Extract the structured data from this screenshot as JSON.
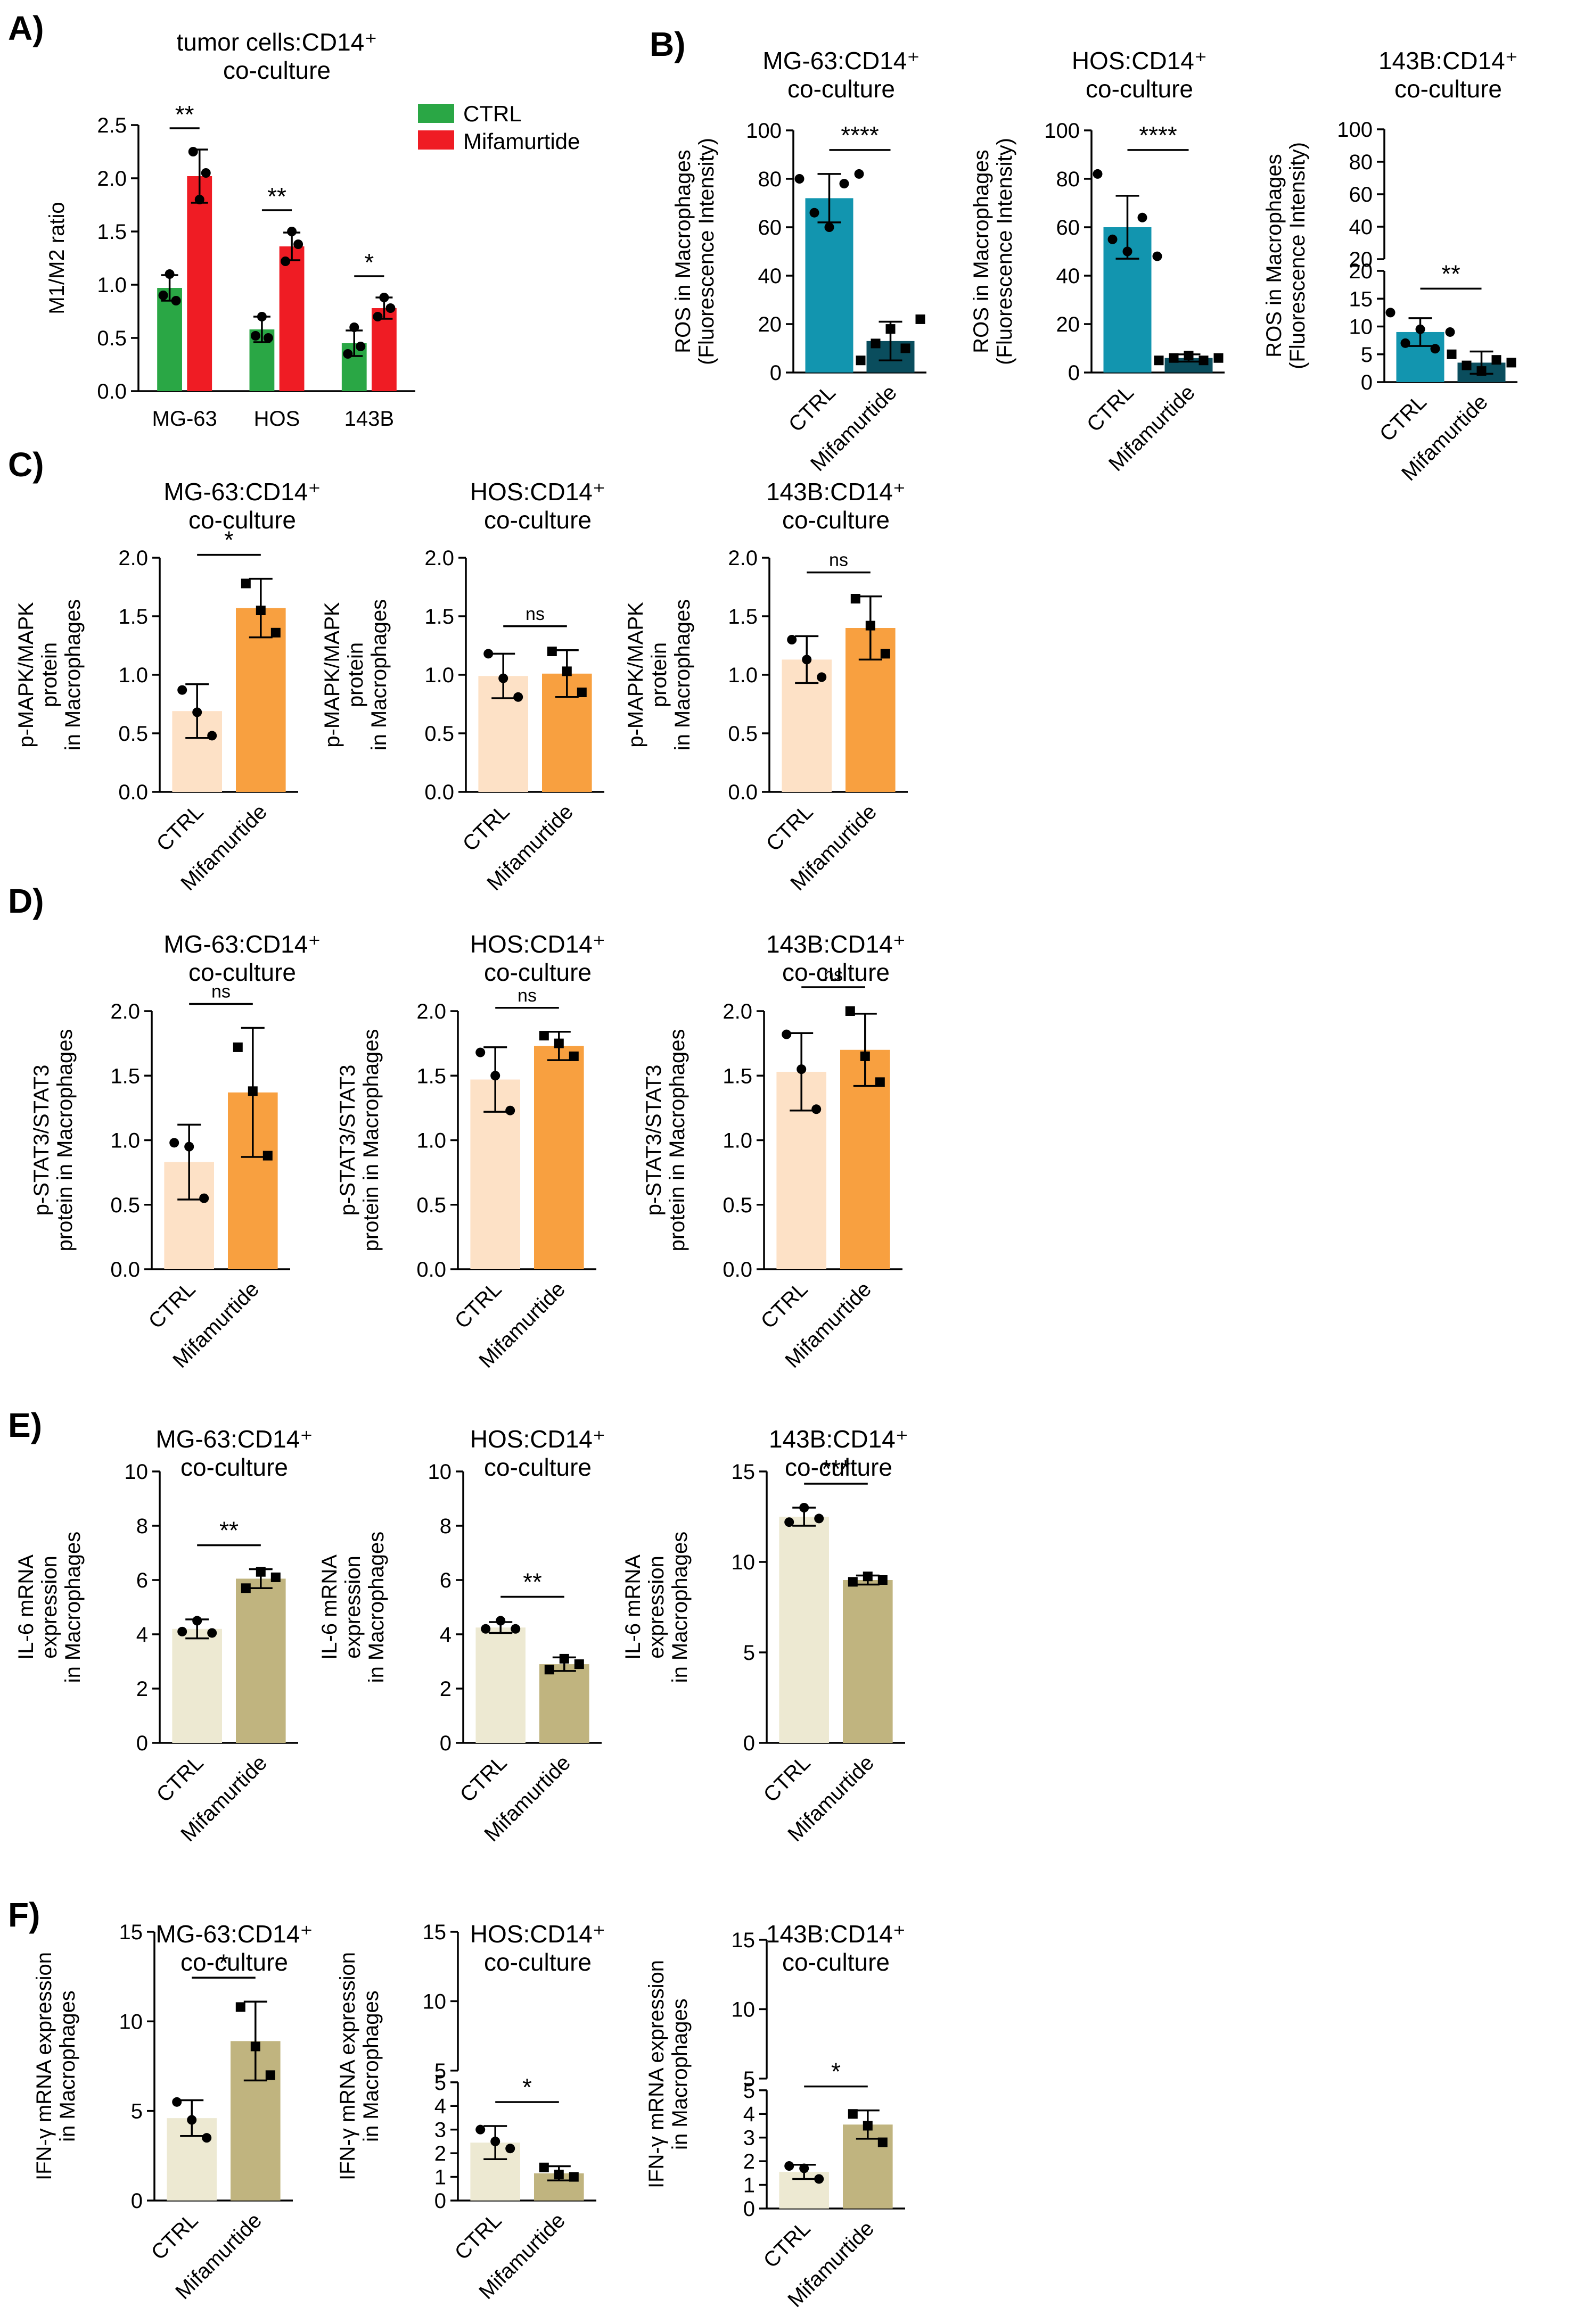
{
  "figure": {
    "panels": [
      {
        "id": "A",
        "letter": "A)",
        "title_lines": [
          "tumor cells:CD14⁺",
          "co-culture"
        ]
      },
      {
        "id": "B",
        "letter": "B)"
      },
      {
        "id": "C",
        "letter": "C)"
      },
      {
        "id": "D",
        "letter": "D)"
      },
      {
        "id": "E",
        "letter": "E)"
      },
      {
        "id": "F",
        "letter": "F)"
      }
    ]
  },
  "colors": {
    "ctrl_green": "#2aa745",
    "mif_red": "#ef1c24",
    "ros_ctrl": "#1295af",
    "ros_mif": "#0a4d5d",
    "mapk_ctrl": "#fde1c6",
    "mapk_mif": "#f8a040",
    "il_ctrl": "#ede9d2",
    "il_mif": "#c0b47f"
  },
  "chart_data": [
    {
      "id": "A",
      "type": "bar",
      "title": "tumor cells:CD14⁺ co-culture",
      "ylabel": "M1/M2 ratio",
      "ylim": [
        0,
        2.5
      ],
      "yticks": [
        "0.0",
        "0.5",
        "1.0",
        "1.5",
        "2.0",
        "2.5"
      ],
      "categories": [
        "MG-63",
        "HOS",
        "143B"
      ],
      "legend": [
        {
          "name": "CTRL"
        },
        {
          "name": "Mifamurtide"
        }
      ],
      "series": [
        {
          "name": "CTRL",
          "values": [
            0.97,
            0.58,
            0.45
          ],
          "errors": [
            0.12,
            0.12,
            0.12
          ],
          "points": [
            [
              0.9,
              1.1,
              0.85
            ],
            [
              0.52,
              0.7,
              0.5
            ],
            [
              0.35,
              0.6,
              0.42
            ]
          ]
        },
        {
          "name": "Mifamurtide",
          "values": [
            2.02,
            1.36,
            0.78
          ],
          "errors": [
            0.25,
            0.13,
            0.1
          ],
          "points": [
            [
              2.25,
              1.8,
              2.05
            ],
            [
              1.22,
              1.5,
              1.38
            ],
            [
              0.7,
              0.88,
              0.78
            ]
          ]
        }
      ],
      "significance": [
        "**",
        "**",
        "*"
      ]
    },
    {
      "id": "B1",
      "type": "bar",
      "title": "MG-63:CD14⁺ co-culture",
      "ylabel": [
        "ROS in Macrophages",
        "(Fluorescence Intensity)"
      ],
      "ylim": [
        0,
        100
      ],
      "yticks": [
        "0",
        "20",
        "40",
        "60",
        "80",
        "100"
      ],
      "categories": [
        "CTRL",
        "Mifamurtide"
      ],
      "values": [
        72,
        13
      ],
      "errors": [
        10,
        8
      ],
      "points": [
        [
          80,
          66,
          60,
          78,
          82
        ],
        [
          5,
          12,
          18,
          10,
          22
        ]
      ],
      "significance": "****"
    },
    {
      "id": "B2",
      "type": "bar",
      "title": "HOS:CD14⁺ co-culture",
      "ylabel": [
        "ROS in Macrophages",
        "(Fluorescence Intensity)"
      ],
      "ylim": [
        0,
        100
      ],
      "yticks": [
        "0",
        "20",
        "40",
        "60",
        "80",
        "100"
      ],
      "categories": [
        "CTRL",
        "Mifamurtide"
      ],
      "values": [
        60,
        6
      ],
      "errors": [
        13,
        1.5
      ],
      "points": [
        [
          82,
          55,
          50,
          64,
          48
        ],
        [
          5,
          6,
          7,
          5,
          6
        ]
      ],
      "significance": "****"
    },
    {
      "id": "B3",
      "type": "bar",
      "title": "143B:CD14⁺ co-culture",
      "ylabel": [
        "ROS in Macrophages",
        "(Fluorescence Intensity)"
      ],
      "ylim": [
        0,
        100
      ],
      "axis_break": [
        20,
        20
      ],
      "yticks": [
        "0",
        "5",
        "10",
        "15",
        "20",
        "20",
        "40",
        "60",
        "80",
        "100"
      ],
      "categories": [
        "CTRL",
        "Mifamurtide"
      ],
      "values": [
        9,
        3.5
      ],
      "errors": [
        2.5,
        2
      ],
      "points": [
        [
          12.5,
          7,
          9.5,
          6,
          9
        ],
        [
          5,
          3,
          2,
          4,
          3.5
        ]
      ],
      "significance": "**"
    },
    {
      "id": "C1",
      "type": "bar",
      "title": "MG-63:CD14⁺ co-culture",
      "ylabel": [
        "p-MAPK/MAPK",
        "protein",
        "in Macrophages"
      ],
      "ylim": [
        0,
        2
      ],
      "yticks": [
        "0.0",
        "0.5",
        "1.0",
        "1.5",
        "2.0"
      ],
      "categories": [
        "CTRL",
        "Mifamurtide"
      ],
      "values": [
        0.69,
        1.57
      ],
      "errors": [
        0.23,
        0.25
      ],
      "points": [
        [
          0.87,
          0.68,
          0.48
        ],
        [
          1.78,
          1.55,
          1.36
        ]
      ],
      "significance": "*"
    },
    {
      "id": "C2",
      "type": "bar",
      "title": "HOS:CD14⁺ co-culture",
      "ylabel": [
        "p-MAPK/MAPK",
        "protein",
        "in Macrophages"
      ],
      "ylim": [
        0,
        2
      ],
      "yticks": [
        "0.0",
        "0.5",
        "1.0",
        "1.5",
        "2.0"
      ],
      "categories": [
        "CTRL",
        "Mifamurtide"
      ],
      "values": [
        0.99,
        1.01
      ],
      "errors": [
        0.19,
        0.2
      ],
      "points": [
        [
          1.18,
          0.97,
          0.81
        ],
        [
          1.2,
          1.03,
          0.85
        ]
      ],
      "significance": "ns"
    },
    {
      "id": "C3",
      "type": "bar",
      "title": "143B:CD14⁺ co-culture",
      "ylabel": [
        "p-MAPK/MAPK",
        "protein",
        "in Macrophages"
      ],
      "ylim": [
        0,
        2
      ],
      "yticks": [
        "0.0",
        "0.5",
        "1.0",
        "1.5",
        "2.0"
      ],
      "categories": [
        "CTRL",
        "Mifamurtide"
      ],
      "values": [
        1.13,
        1.4
      ],
      "errors": [
        0.2,
        0.27
      ],
      "points": [
        [
          1.3,
          1.13,
          0.98
        ],
        [
          1.65,
          1.42,
          1.18
        ]
      ],
      "significance": "ns"
    },
    {
      "id": "D1",
      "type": "bar",
      "title": "MG-63:CD14⁺ co-culture",
      "ylabel": [
        "p-STAT3/STAT3",
        "protein in Macrophages"
      ],
      "ylim": [
        0,
        2
      ],
      "yticks": [
        "0.0",
        "0.5",
        "1.0",
        "1.5",
        "2.0"
      ],
      "categories": [
        "CTRL",
        "Mifamurtide"
      ],
      "values": [
        0.83,
        1.37
      ],
      "errors": [
        0.29,
        0.5
      ],
      "points": [
        [
          0.98,
          0.95,
          0.55
        ],
        [
          1.72,
          1.38,
          0.88
        ]
      ],
      "significance": "ns"
    },
    {
      "id": "D2",
      "type": "bar",
      "title": "HOS:CD14⁺ co-culture",
      "ylabel": [
        "p-STAT3/STAT3",
        "protein in Macrophages"
      ],
      "ylim": [
        0,
        2
      ],
      "yticks": [
        "0.0",
        "0.5",
        "1.0",
        "1.5",
        "2.0"
      ],
      "categories": [
        "CTRL",
        "Mifamurtide"
      ],
      "values": [
        1.47,
        1.73
      ],
      "errors": [
        0.25,
        0.11
      ],
      "points": [
        [
          1.68,
          1.5,
          1.23
        ],
        [
          1.81,
          1.75,
          1.65
        ]
      ],
      "significance": "ns"
    },
    {
      "id": "D3",
      "type": "bar",
      "title": "143B:CD14⁺ co-culture",
      "ylabel": [
        "p-STAT3/STAT3",
        "protein in Macrophages"
      ],
      "ylim": [
        0,
        2
      ],
      "yticks": [
        "0.0",
        "0.5",
        "1.0",
        "1.5",
        "2.0"
      ],
      "categories": [
        "CTRL",
        "Mifamurtide"
      ],
      "values": [
        1.53,
        1.7
      ],
      "errors": [
        0.3,
        0.28
      ],
      "points": [
        [
          1.82,
          1.55,
          1.24
        ],
        [
          2.0,
          1.65,
          1.45
        ]
      ],
      "significance": "ns"
    },
    {
      "id": "E1",
      "type": "bar",
      "title": "MG-63:CD14⁺ co-culture",
      "ylabel": [
        "IL-6 mRNA",
        "expression",
        "in Macrophages"
      ],
      "ylim": [
        0,
        10
      ],
      "yticks": [
        "0",
        "2",
        "4",
        "6",
        "8",
        "10"
      ],
      "categories": [
        "CTRL",
        "Mifamurtide"
      ],
      "values": [
        4.2,
        6.05
      ],
      "errors": [
        0.35,
        0.35
      ],
      "points": [
        [
          4.1,
          4.5,
          4.05
        ],
        [
          5.7,
          6.3,
          6.1
        ]
      ],
      "significance": "**"
    },
    {
      "id": "E2",
      "type": "bar",
      "title": "HOS:CD14⁺ co-culture",
      "ylabel": [
        "IL-6 mRNA",
        "expression",
        "in Macrophages"
      ],
      "ylim": [
        0,
        10
      ],
      "yticks": [
        "0",
        "2",
        "4",
        "6",
        "8",
        "10"
      ],
      "categories": [
        "CTRL",
        "Mifamurtide"
      ],
      "values": [
        4.25,
        2.9
      ],
      "errors": [
        0.2,
        0.25
      ],
      "points": [
        [
          4.2,
          4.5,
          4.2
        ],
        [
          2.7,
          3.1,
          2.9
        ]
      ],
      "significance": "**"
    },
    {
      "id": "E3",
      "type": "bar",
      "title": "143B:CD14⁺ co-culture",
      "ylabel": [
        "IL-6 mRNA",
        "expression",
        "in Macrophages"
      ],
      "ylim": [
        0,
        15
      ],
      "yticks": [
        "0",
        "5",
        "10",
        "15"
      ],
      "categories": [
        "CTRL",
        "Mifamurtide"
      ],
      "values": [
        12.5,
        9.0
      ],
      "errors": [
        0.5,
        0.25
      ],
      "points": [
        [
          12.2,
          13.0,
          12.4
        ],
        [
          8.9,
          9.2,
          9.0
        ]
      ],
      "significance": "***"
    },
    {
      "id": "F1",
      "type": "bar",
      "title": "MG-63:CD14⁺ co-culture",
      "ylabel": [
        "IFN-γ mRNA expression",
        "in Macrophages"
      ],
      "ylim": [
        0,
        15
      ],
      "yticks": [
        "0",
        "5",
        "10",
        "15"
      ],
      "categories": [
        "CTRL",
        "Mifamurtide"
      ],
      "values": [
        4.6,
        8.9
      ],
      "errors": [
        1.0,
        2.2
      ],
      "points": [
        [
          5.5,
          4.5,
          3.5
        ],
        [
          10.8,
          8.6,
          7.0
        ]
      ],
      "significance": "*"
    },
    {
      "id": "F2",
      "type": "bar",
      "title": "HOS:CD14⁺ co-culture",
      "ylabel": [
        "IFN-γ mRNA expression",
        "in Macrophages"
      ],
      "ylim": [
        0,
        15
      ],
      "axis_break": [
        5,
        5
      ],
      "yticks": [
        "0",
        "1",
        "2",
        "3",
        "4",
        "5",
        "5",
        "10",
        "15"
      ],
      "categories": [
        "CTRL",
        "Mifamurtide"
      ],
      "values": [
        2.45,
        1.15
      ],
      "errors": [
        0.7,
        0.3
      ],
      "points": [
        [
          3.0,
          2.5,
          2.2
        ],
        [
          1.4,
          1.1,
          1.0
        ]
      ],
      "significance": "*"
    },
    {
      "id": "F3",
      "type": "bar",
      "title": "143B:CD14⁺ co-culture",
      "ylabel": [
        "IFN-γ mRNA expression",
        "in Macrophages"
      ],
      "ylim": [
        0,
        15
      ],
      "axis_break": [
        5,
        5
      ],
      "yticks": [
        "0",
        "1",
        "2",
        "3",
        "4",
        "5",
        "5",
        "10",
        "15"
      ],
      "categories": [
        "CTRL",
        "Mifamurtide"
      ],
      "values": [
        1.55,
        3.55
      ],
      "errors": [
        0.3,
        0.6
      ],
      "points": [
        [
          1.8,
          1.7,
          1.25
        ],
        [
          4.0,
          3.5,
          2.8
        ]
      ],
      "significance": "*"
    }
  ]
}
